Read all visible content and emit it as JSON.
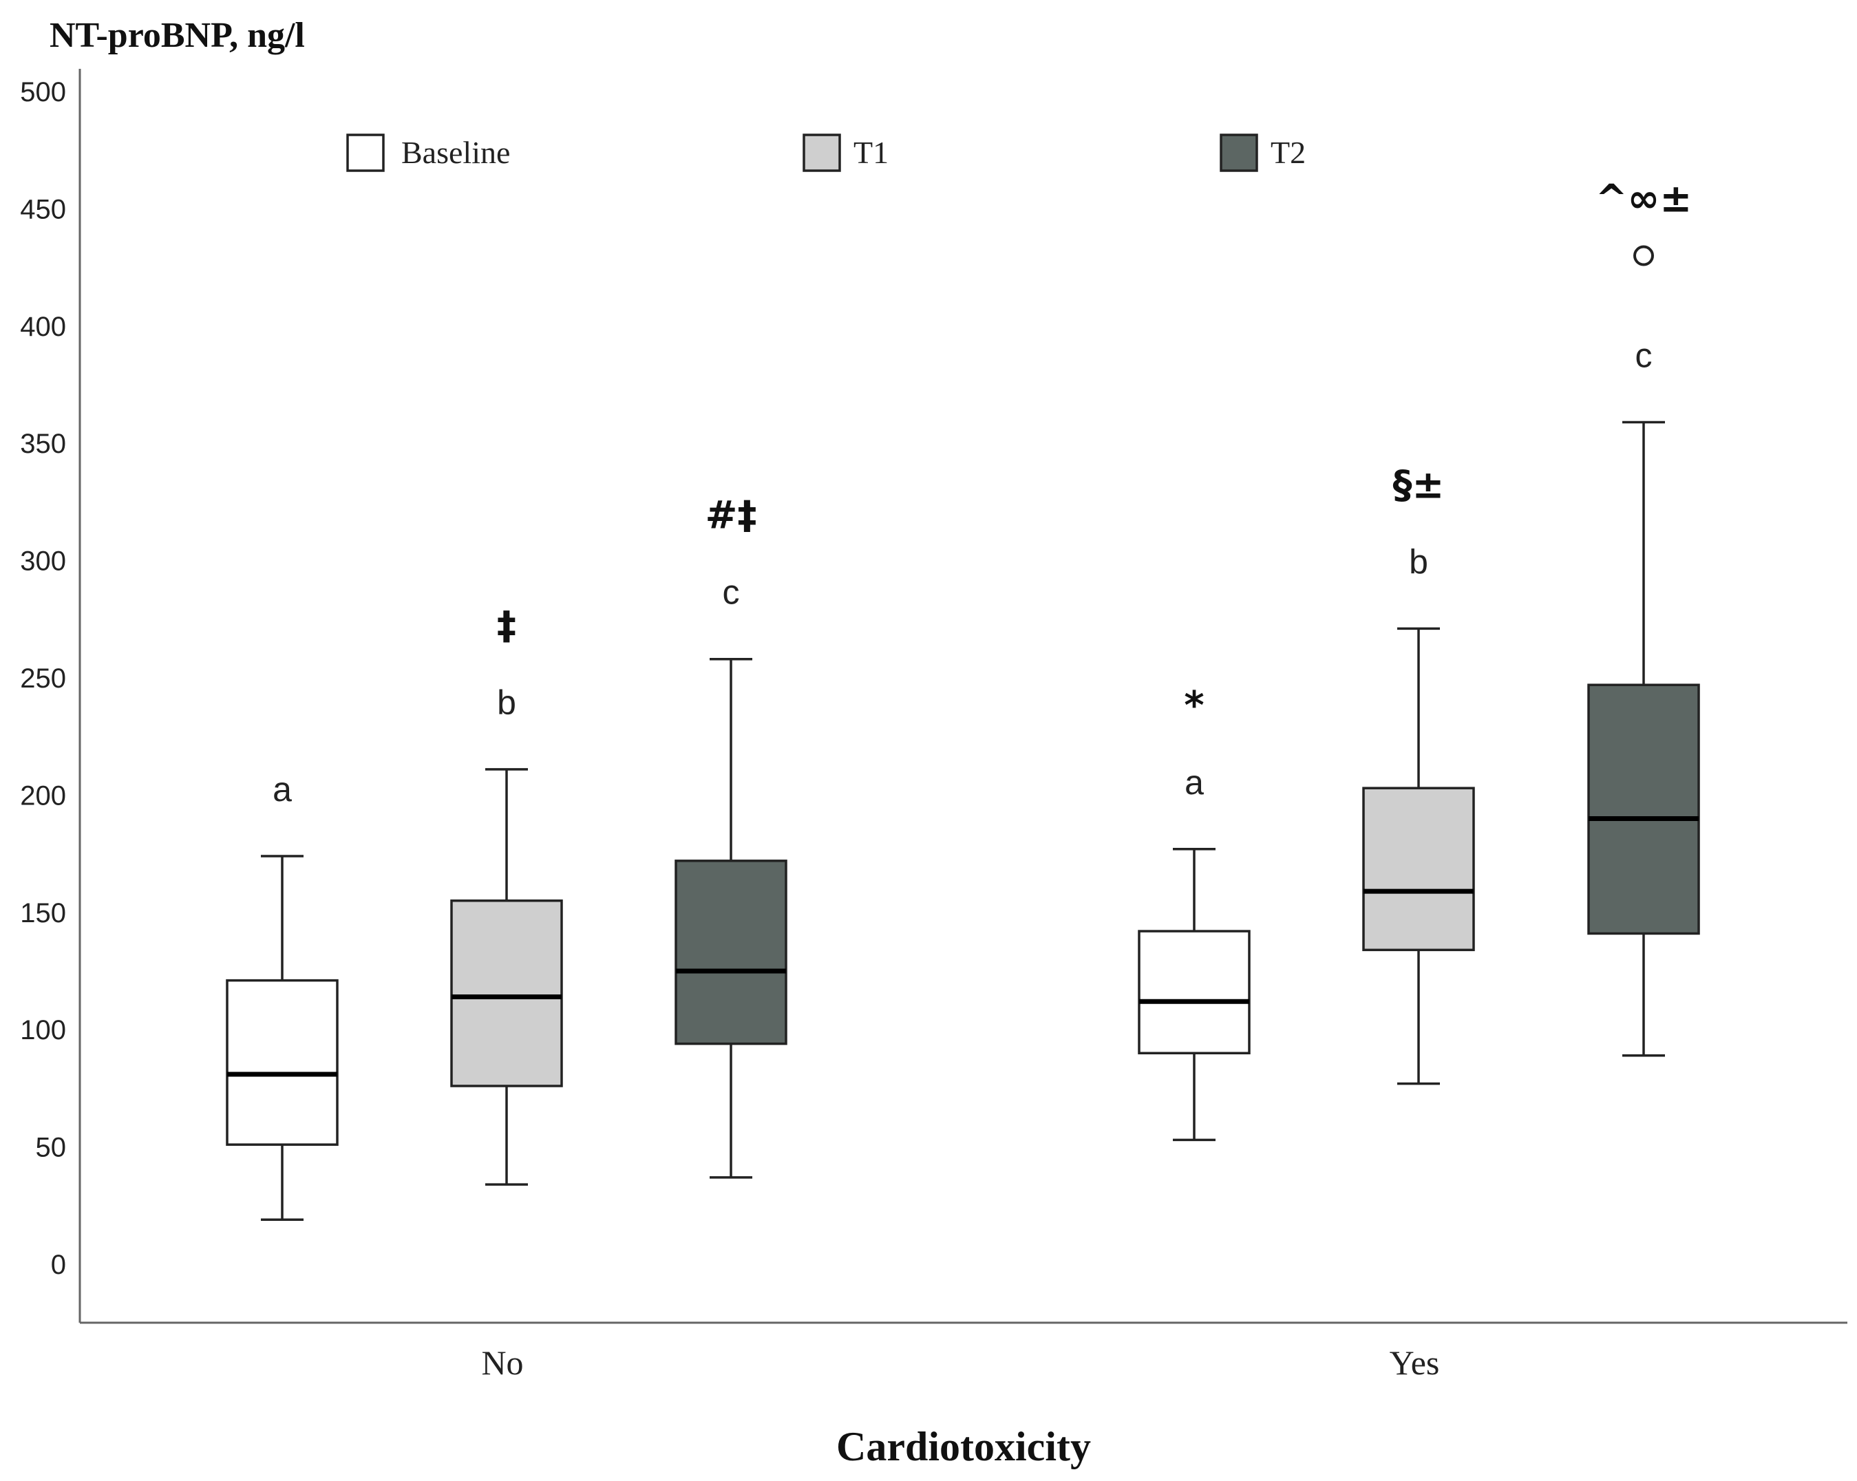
{
  "chart_data": {
    "type": "boxplot",
    "title": "",
    "ylabel": "NT-proBNP, ng/l",
    "xlabel": "Cardiotoxicity",
    "ylim": [
      0,
      500
    ],
    "yticks": [
      0,
      50,
      100,
      150,
      200,
      250,
      300,
      350,
      400,
      450,
      500
    ],
    "categories": [
      "No",
      "Yes"
    ],
    "series": [
      {
        "name": "Baseline",
        "color": "#ffffff"
      },
      {
        "name": "T1",
        "color": "#cfcfcf"
      },
      {
        "name": "T2",
        "color": "#5c6663"
      }
    ],
    "boxes": [
      {
        "category": "No",
        "series": "Baseline",
        "min": 19,
        "q1": 51,
        "median": 81,
        "q3": 121,
        "max": 174,
        "letter": "a",
        "symbol": "",
        "outliers": []
      },
      {
        "category": "No",
        "series": "T1",
        "min": 34,
        "q1": 76,
        "median": 114,
        "q3": 155,
        "max": 211,
        "letter": "b",
        "symbol": "‡",
        "outliers": []
      },
      {
        "category": "No",
        "series": "T2",
        "min": 37,
        "q1": 94,
        "median": 125,
        "q3": 172,
        "max": 258,
        "letter": "c",
        "symbol": "#‡",
        "outliers": []
      },
      {
        "category": "Yes",
        "series": "Baseline",
        "min": 53,
        "q1": 90,
        "median": 112,
        "q3": 142,
        "max": 177,
        "letter": "a",
        "symbol": "*",
        "outliers": []
      },
      {
        "category": "Yes",
        "series": "T1",
        "min": 77,
        "q1": 134,
        "median": 159,
        "q3": 203,
        "max": 271,
        "letter": "b",
        "symbol": "§±",
        "outliers": []
      },
      {
        "category": "Yes",
        "series": "T2",
        "min": 89,
        "q1": 141,
        "median": 190,
        "q3": 247,
        "max": 359,
        "letter": "c",
        "symbol": "^∞±",
        "outliers": [
          430
        ]
      }
    ]
  }
}
